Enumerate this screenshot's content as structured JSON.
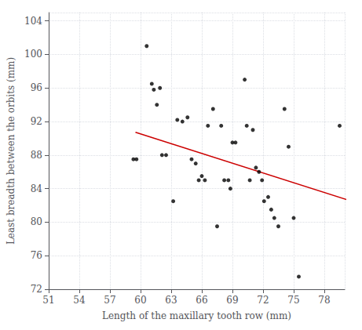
{
  "chart_data": {
    "type": "scatter",
    "title": "",
    "xlabel": "Length of the maxillary tooth row (mm)",
    "ylabel": "Least breadth between the orbits (mm)",
    "xlim": [
      51,
      80
    ],
    "ylim": [
      72,
      105
    ],
    "xticks": [
      51,
      54,
      57,
      60,
      63,
      66,
      69,
      72,
      75,
      78
    ],
    "yticks": [
      72,
      76,
      80,
      84,
      88,
      92,
      96,
      100,
      104
    ],
    "grid": true,
    "series": [
      {
        "type": "scatter",
        "color": "#000000",
        "marker": "circle",
        "x": [
          59.3,
          59.6,
          60.6,
          61.1,
          61.3,
          61.6,
          61.9,
          62.1,
          62.5,
          63.2,
          63.6,
          64.1,
          64.6,
          65.0,
          65.4,
          65.7,
          66.0,
          66.3,
          66.6,
          67.1,
          67.5,
          67.9,
          68.2,
          68.6,
          68.8,
          69.0,
          69.3,
          70.2,
          70.4,
          70.7,
          71.0,
          71.3,
          71.6,
          71.9,
          72.1,
          72.5,
          72.8,
          73.1,
          73.5,
          74.1,
          74.5,
          75.0,
          75.5,
          79.5
        ],
        "values": [
          87.5,
          87.5,
          101.0,
          96.5,
          95.8,
          94.0,
          96.0,
          88.0,
          88.0,
          82.5,
          92.2,
          92.0,
          92.5,
          87.5,
          87.0,
          85.0,
          85.5,
          85.0,
          91.5,
          93.5,
          79.5,
          91.5,
          85.0,
          85.0,
          84.0,
          89.5,
          89.5,
          97.0,
          91.5,
          85.0,
          91.0,
          86.5,
          86.0,
          85.0,
          82.5,
          83.0,
          81.5,
          80.5,
          79.5,
          93.5,
          89.0,
          80.5,
          73.5,
          91.5
        ]
      },
      {
        "type": "line",
        "color": "#cc0000",
        "line_style": "solid",
        "x": [
          59.5,
          80.5
        ],
        "values": [
          90.714,
          82.566
        ]
      }
    ]
  }
}
